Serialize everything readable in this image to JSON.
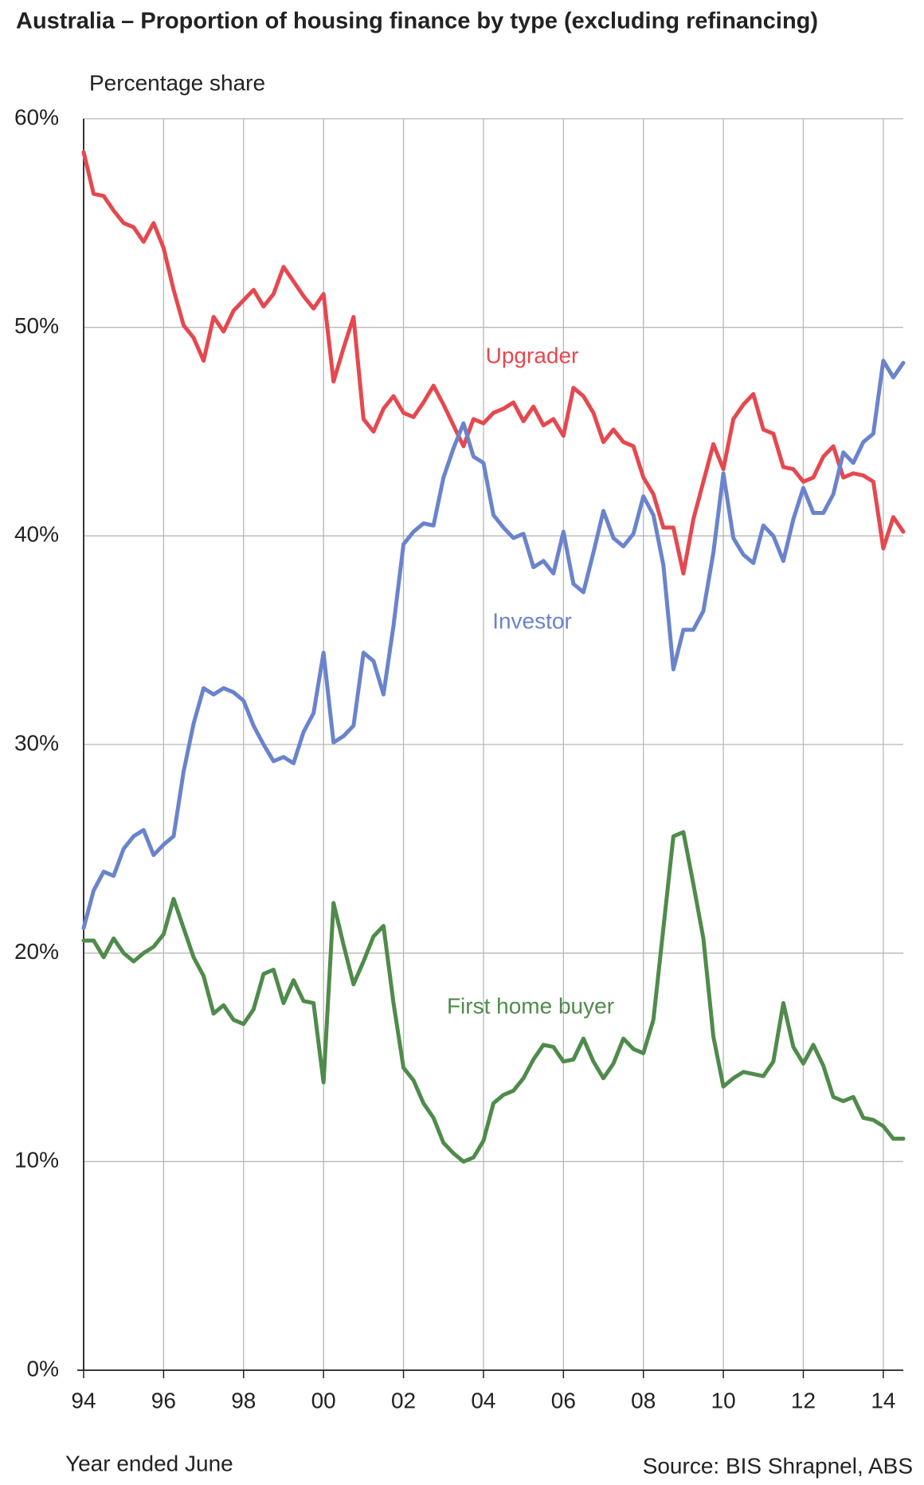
{
  "chart_data": {
    "type": "line",
    "title": "Australia – Proportion of housing finance by type (excluding refinancing)",
    "y_label": "Percentage share",
    "x_label": "Year ended June",
    "source": "Source: BIS Shrapnel, ABS",
    "x": [
      1994,
      1994.25,
      1994.5,
      1994.75,
      1995,
      1995.25,
      1995.5,
      1995.75,
      1996,
      1996.25,
      1996.5,
      1996.75,
      1997,
      1997.25,
      1997.5,
      1997.75,
      1998,
      1998.25,
      1998.5,
      1998.75,
      1999,
      1999.25,
      1999.5,
      1999.75,
      2000,
      2000.25,
      2000.5,
      2000.75,
      2001,
      2001.25,
      2001.5,
      2001.75,
      2002,
      2002.25,
      2002.5,
      2002.75,
      2003,
      2003.25,
      2003.5,
      2003.75,
      2004,
      2004.25,
      2004.5,
      2004.75,
      2005,
      2005.25,
      2005.5,
      2005.75,
      2006,
      2006.25,
      2006.5,
      2006.75,
      2007,
      2007.25,
      2007.5,
      2007.75,
      2008,
      2008.25,
      2008.5,
      2008.75,
      2009,
      2009.25,
      2009.5,
      2009.75,
      2010,
      2010.25,
      2010.5,
      2010.75,
      2011,
      2011.25,
      2011.5,
      2011.75,
      2012,
      2012.25,
      2012.5,
      2012.75,
      2013,
      2013.25,
      2013.5,
      2013.75,
      2014,
      2014.25,
      2014.5
    ],
    "series": [
      {
        "name": "Upgrader",
        "color": "#e5484f",
        "values": [
          58.4,
          56.4,
          56.3,
          55.6,
          55.0,
          54.8,
          54.1,
          55.0,
          53.8,
          51.8,
          50.1,
          49.5,
          48.4,
          50.5,
          49.8,
          50.8,
          51.3,
          51.8,
          51.0,
          51.6,
          52.9,
          52.2,
          51.5,
          50.9,
          51.6,
          47.4,
          49.0,
          50.5,
          45.6,
          45.0,
          46.1,
          46.7,
          45.9,
          45.7,
          46.4,
          47.2,
          46.3,
          45.3,
          44.3,
          45.6,
          45.4,
          45.9,
          46.1,
          46.4,
          45.5,
          46.2,
          45.3,
          45.6,
          44.8,
          47.1,
          46.7,
          45.9,
          44.5,
          45.1,
          44.5,
          44.3,
          42.8,
          42.0,
          40.4,
          40.4,
          38.2,
          40.8,
          42.6,
          44.4,
          43.2,
          45.6,
          46.3,
          46.8,
          45.1,
          44.9,
          43.3,
          43.2,
          42.6,
          42.8,
          43.8,
          44.3,
          42.8,
          43.0,
          42.9,
          42.6,
          39.4,
          40.9,
          40.2
        ]
      },
      {
        "name": "Investor",
        "color": "#6a83cc",
        "values": [
          21.2,
          23.0,
          23.9,
          23.7,
          25.0,
          25.6,
          25.9,
          24.7,
          25.2,
          25.6,
          28.7,
          31.0,
          32.7,
          32.4,
          32.7,
          32.5,
          32.1,
          30.9,
          30.0,
          29.2,
          29.4,
          29.1,
          30.6,
          31.5,
          34.4,
          30.1,
          30.4,
          30.9,
          34.4,
          34.0,
          32.4,
          35.7,
          39.6,
          40.2,
          40.6,
          40.5,
          42.8,
          44.2,
          45.4,
          43.8,
          43.5,
          41.0,
          40.4,
          39.9,
          40.1,
          38.5,
          38.8,
          38.2,
          40.2,
          37.7,
          37.3,
          39.2,
          41.2,
          39.9,
          39.5,
          40.1,
          41.9,
          41.0,
          38.6,
          33.6,
          35.5,
          35.5,
          36.4,
          39.2,
          43.0,
          39.9,
          39.1,
          38.7,
          40.5,
          40.0,
          38.8,
          40.8,
          42.3,
          41.1,
          41.1,
          42.0,
          44.0,
          43.5,
          44.5,
          44.9,
          48.4,
          47.6,
          48.3
        ]
      },
      {
        "name": "First home buyer",
        "color": "#4f8b4b",
        "values": [
          20.6,
          20.6,
          19.8,
          20.7,
          20.0,
          19.6,
          20.0,
          20.3,
          20.9,
          22.6,
          21.2,
          19.8,
          18.9,
          17.1,
          17.5,
          16.8,
          16.6,
          17.3,
          19.0,
          19.2,
          17.6,
          18.7,
          17.7,
          17.6,
          13.8,
          22.4,
          20.4,
          18.5,
          19.6,
          20.8,
          21.3,
          17.6,
          14.5,
          13.9,
          12.8,
          12.1,
          10.9,
          10.4,
          10.0,
          10.2,
          11.0,
          12.8,
          13.2,
          13.4,
          14.0,
          14.9,
          15.6,
          15.5,
          14.8,
          14.9,
          15.9,
          14.8,
          14.0,
          14.7,
          15.9,
          15.4,
          15.2,
          16.8,
          21.2,
          25.6,
          25.8,
          23.3,
          20.7,
          16.0,
          13.6,
          14.0,
          14.3,
          14.2,
          14.1,
          14.8,
          17.6,
          15.5,
          14.7,
          15.6,
          14.6,
          13.1,
          12.9,
          13.1,
          12.1,
          12.0,
          11.7,
          11.1,
          11.1
        ]
      }
    ],
    "xlim": [
      1994,
      2014.5
    ],
    "xticks": [
      {
        "value": 1994,
        "label": "94"
      },
      {
        "value": 1996,
        "label": "96"
      },
      {
        "value": 1998,
        "label": "98"
      },
      {
        "value": 2000,
        "label": "00"
      },
      {
        "value": 2002,
        "label": "02"
      },
      {
        "value": 2004,
        "label": "04"
      },
      {
        "value": 2006,
        "label": "06"
      },
      {
        "value": 2008,
        "label": "08"
      },
      {
        "value": 2010,
        "label": "10"
      },
      {
        "value": 2012,
        "label": "12"
      },
      {
        "value": 2014,
        "label": "14"
      }
    ],
    "ylim": [
      0,
      60
    ],
    "yticks": [
      {
        "value": 0,
        "label": "0%"
      },
      {
        "value": 10,
        "label": "10%"
      },
      {
        "value": 20,
        "label": "20%"
      },
      {
        "value": 30,
        "label": "30%"
      },
      {
        "value": 40,
        "label": "40%"
      },
      {
        "value": 50,
        "label": "50%"
      },
      {
        "value": 60,
        "label": "60%"
      }
    ],
    "grid": true
  }
}
